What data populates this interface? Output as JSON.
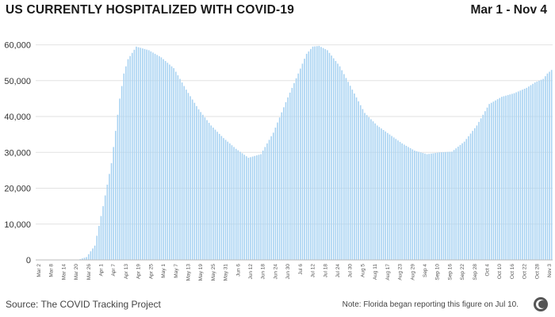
{
  "header": {
    "title": "US CURRENTLY HOSPITALIZED WITH COVID-19",
    "date_range": "Mar 1 - Nov 4"
  },
  "footer": {
    "source": "Source: The COVID Tracking Project",
    "note": "Note: Florida began reporting this figure on Jul 10."
  },
  "colors": {
    "bar": "#a9d3f2",
    "grid": "#e2e2e2",
    "baseline": "#bbbbbb"
  },
  "chart_data": {
    "type": "bar",
    "title": "US CURRENTLY HOSPITALIZED WITH COVID-19",
    "xlabel": "",
    "ylabel": "",
    "ylim": [
      0,
      63000
    ],
    "yticks": [
      0,
      10000,
      20000,
      30000,
      40000,
      50000,
      60000
    ],
    "ytick_labels": [
      "0",
      "10,000",
      "20,000",
      "30,000",
      "40,000",
      "50,000",
      "60,000"
    ],
    "start_date": "Mar 1",
    "end_date": "Nov 4",
    "xtick_labels": [
      "Mar 2",
      "Mar 8",
      "Mar 14",
      "Mar 20",
      "Mar 26",
      "Apr 1",
      "Apr 7",
      "Apr 13",
      "Apr 19",
      "Apr 25",
      "May 1",
      "May 7",
      "May 13",
      "May 19",
      "May 25",
      "May 31",
      "Jun 6",
      "Jun 12",
      "Jun 18",
      "Jun 24",
      "Jun 30",
      "Jul 6",
      "Jul 12",
      "Jul 18",
      "Jul 24",
      "Jul 30",
      "Aug 5",
      "Aug 11",
      "Aug 17",
      "Aug 23",
      "Aug 29",
      "Sep 4",
      "Sep 10",
      "Sep 16",
      "Sep 22",
      "Sep 28",
      "Oct 4",
      "Oct 10",
      "Oct 16",
      "Oct 22",
      "Oct 28",
      "Nov 3"
    ],
    "anchor_days": [
      0,
      16,
      20,
      24,
      28,
      32,
      36,
      40,
      42,
      44,
      48,
      54,
      60,
      66,
      72,
      78,
      84,
      90,
      96,
      102,
      108,
      114,
      120,
      126,
      130,
      133,
      136,
      140,
      146,
      152,
      158,
      164,
      170,
      176,
      182,
      188,
      194,
      200,
      206,
      212,
      218,
      224,
      230,
      236,
      240,
      244,
      246,
      248
    ],
    "anchor_values": [
      0,
      0,
      50,
      800,
      4000,
      15000,
      27000,
      45000,
      52000,
      56000,
      59500,
      58500,
      56500,
      53500,
      47500,
      42000,
      37500,
      34000,
      31000,
      28500,
      29500,
      35500,
      44000,
      52000,
      57500,
      59500,
      59700,
      58500,
      54000,
      47500,
      41000,
      37500,
      35000,
      32500,
      30500,
      29500,
      30000,
      30200,
      33000,
      37500,
      43500,
      45500,
      46500,
      48000,
      49500,
      50500,
      52000,
      53000
    ]
  }
}
